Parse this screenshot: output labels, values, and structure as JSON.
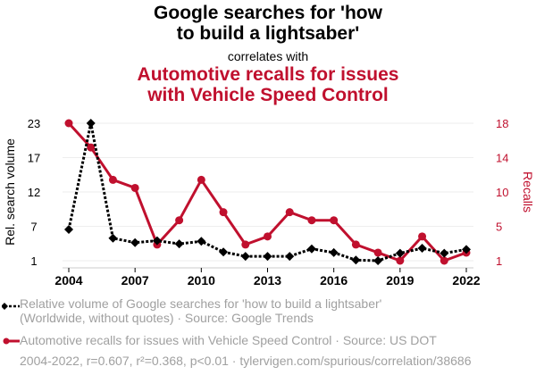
{
  "title": {
    "line1": "Google searches for 'how",
    "line2": "to build a lightsaber'",
    "correlates": "correlates with",
    "line3": "Automotive recalls for issues",
    "line4": "with Vehicle Speed Control"
  },
  "colors": {
    "series1": "#000000",
    "series2": "#c0102e",
    "grid": "#eeeeee",
    "legend_text": "#a0a0a0"
  },
  "legend": {
    "series1_line1": "Relative volume of Google searches for 'how to build a lightsaber'",
    "series1_line2": "(Worldwide, without quotes) · Source: Google Trends",
    "series2": "Automotive recalls for issues with Vehicle Speed Control · Source: US DOT",
    "footer": "2004-2022, r=0.607, r²=0.368, p<0.01 · tylervigen.com/spurious/correlation/38686"
  },
  "chart_data": {
    "type": "line",
    "title": "Google searches for 'how to build a lightsaber' correlates with Automotive recalls for issues with Vehicle Speed Control",
    "x": [
      2004,
      2005,
      2006,
      2007,
      2008,
      2009,
      2010,
      2011,
      2012,
      2013,
      2014,
      2015,
      2016,
      2017,
      2018,
      2019,
      2020,
      2021,
      2022
    ],
    "xticks": [
      2004,
      2007,
      2010,
      2013,
      2016,
      2019,
      2022
    ],
    "xlim": [
      2004,
      2022
    ],
    "ylabel": "Rel. search volume",
    "ylabel_right": "Recalls",
    "y_left_ticks": [
      "23",
      "17",
      "12",
      "7",
      "1"
    ],
    "y_left_range": [
      1,
      23
    ],
    "y_right_ticks": [
      "18",
      "14",
      "10",
      "5",
      "1"
    ],
    "y_right_range": [
      1,
      18
    ],
    "grid": true,
    "legend_position": "bottom",
    "series": [
      {
        "name": "Relative volume of Google searches for 'how to build a lightsaber'",
        "axis": "left",
        "style": "dotted-diamond",
        "values": [
          6,
          23,
          4.6,
          3.9,
          4.2,
          3.7,
          4.1,
          2.4,
          1.7,
          1.7,
          1.7,
          2.9,
          2.3,
          1.1,
          1,
          2.2,
          3,
          2.2,
          2.8
        ]
      },
      {
        "name": "Automotive recalls for issues with Vehicle Speed Control",
        "axis": "right",
        "style": "solid-circle",
        "values": [
          18,
          15,
          11,
          10,
          3,
          6,
          11,
          7,
          3,
          4,
          7,
          6,
          6,
          3,
          2,
          1,
          4,
          1,
          2
        ]
      }
    ]
  }
}
